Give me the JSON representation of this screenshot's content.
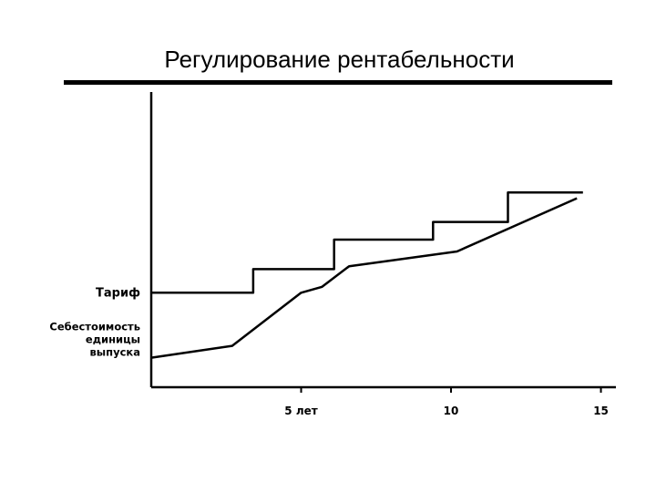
{
  "slide": {
    "title": "Регулирование рентабельности"
  },
  "colors": {
    "line": "#000000",
    "background": "#ffffff"
  },
  "chart_data": {
    "type": "line",
    "title": "Регулирование рентабельности",
    "xlabel": "",
    "ylabel": "",
    "x_ticks": [
      {
        "value": 5,
        "label": "5 лет"
      },
      {
        "value": 10,
        "label": "10"
      },
      {
        "value": 15,
        "label": "15"
      }
    ],
    "xlim": [
      0,
      15.5
    ],
    "ylim": [
      0,
      10
    ],
    "grid": false,
    "y_annotations": [
      {
        "label": "Тариф",
        "series": "tariff"
      },
      {
        "label": "Себестоимость единицы выпуска",
        "lines": [
          "Себестоимость",
          "единицы",
          "выпуска"
        ],
        "series": "cost"
      }
    ],
    "series": [
      {
        "key": "tariff",
        "step": true,
        "points": [
          [
            0,
            3.2
          ],
          [
            3.4,
            3.2
          ],
          [
            3.4,
            4.0
          ],
          [
            6.1,
            4.0
          ],
          [
            6.1,
            5.0
          ],
          [
            9.4,
            5.0
          ],
          [
            9.4,
            5.6
          ],
          [
            11.9,
            5.6
          ],
          [
            11.9,
            6.6
          ],
          [
            14.4,
            6.6
          ]
        ]
      },
      {
        "key": "cost",
        "step": false,
        "points": [
          [
            0,
            1.0
          ],
          [
            2.7,
            1.4
          ],
          [
            5.0,
            3.2
          ],
          [
            5.7,
            3.4
          ],
          [
            6.6,
            4.1
          ],
          [
            10.2,
            4.6
          ],
          [
            14.2,
            6.4
          ]
        ]
      }
    ]
  }
}
